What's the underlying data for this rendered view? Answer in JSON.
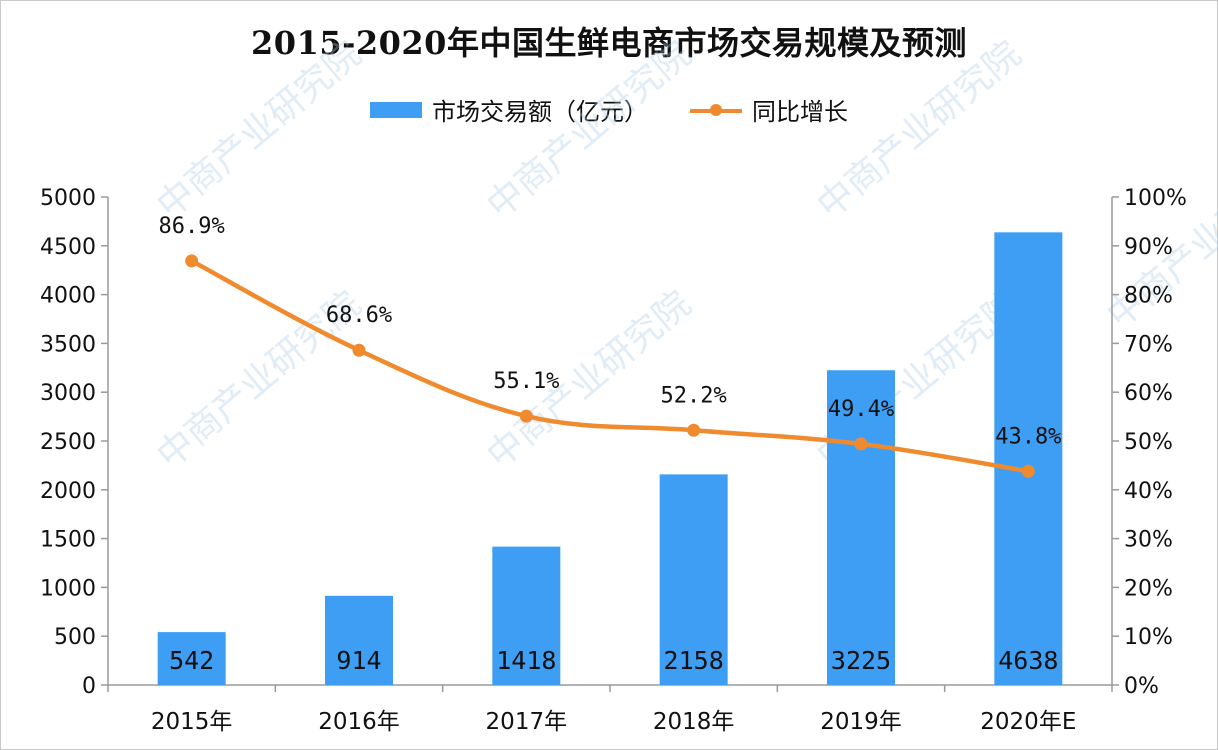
{
  "chart_data": {
    "type": "bar",
    "title": "2015-2020年中国生鲜电商市场交易规模及预测",
    "categories": [
      "2015年",
      "2016年",
      "2017年",
      "2018年",
      "2019年",
      "2020年E"
    ],
    "series": [
      {
        "name": "市场交易额（亿元）",
        "type": "bar",
        "axis": "left",
        "values": [
          542,
          914,
          1418,
          2158,
          3225,
          4638
        ],
        "labels": [
          "542",
          "914",
          "1418",
          "2158",
          "3225",
          "4638"
        ]
      },
      {
        "name": "同比增长",
        "type": "line",
        "axis": "right",
        "values": [
          86.9,
          68.6,
          55.1,
          52.2,
          49.4,
          43.8
        ],
        "labels": [
          "86.9%",
          "68.6%",
          "55.1%",
          "52.2%",
          "49.4%",
          "43.8%"
        ]
      }
    ],
    "y_left": {
      "min": 0,
      "max": 5000,
      "ticks": [
        "0",
        "500",
        "1000",
        "1500",
        "2000",
        "2500",
        "3000",
        "3500",
        "4000",
        "4500",
        "5000"
      ]
    },
    "y_right": {
      "min": 0,
      "max": 100,
      "ticks": [
        "0%",
        "10%",
        "20%",
        "30%",
        "40%",
        "50%",
        "60%",
        "70%",
        "80%",
        "90%",
        "100%"
      ]
    },
    "legend_position": "top-center",
    "grid": false
  },
  "colors": {
    "bar": "#3e9ef4",
    "line": "#f08a2f",
    "axis": "#9a9a9a"
  },
  "watermark_text": "中商产业研究院"
}
